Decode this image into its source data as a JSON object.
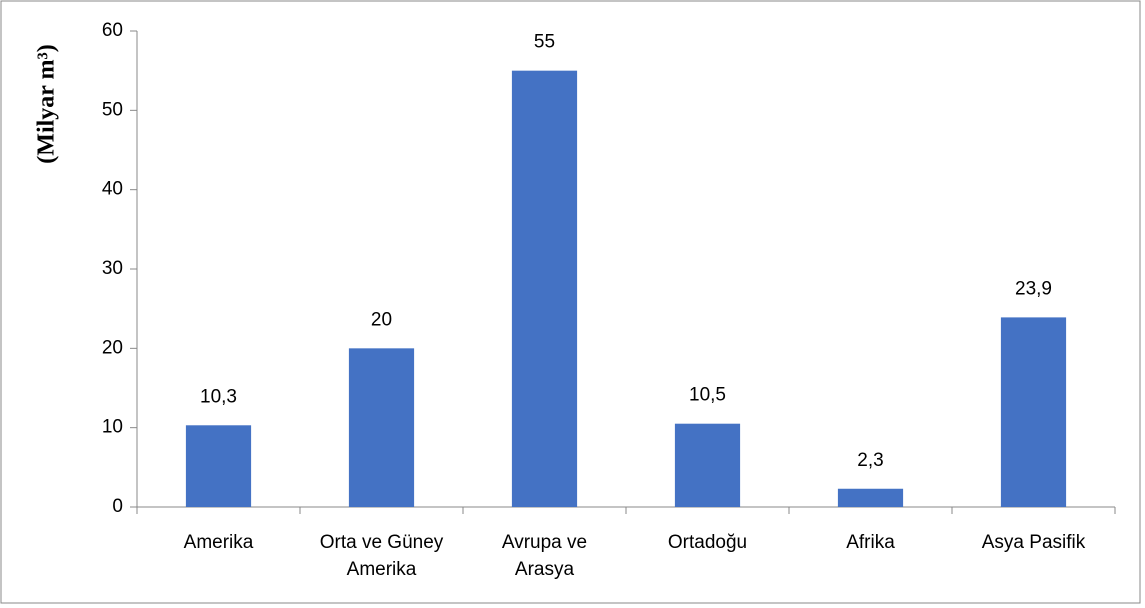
{
  "chart_data": {
    "type": "bar",
    "y_label": "(Milyar m³)",
    "categories": [
      "Amerika",
      "Orta ve Güney Amerika",
      "Avrupa ve Arasya",
      "Ortadoğu",
      "Afrika",
      "Asya Pasifik"
    ],
    "values": [
      10.3,
      20,
      55,
      10.5,
      2.3,
      23.9
    ],
    "value_labels": [
      "10,3",
      "20",
      "55",
      "10,5",
      "2,3",
      "23,9"
    ],
    "color": "#4472c4",
    "ylim": [
      0,
      60
    ],
    "yticks": [
      0,
      10,
      20,
      30,
      40,
      50,
      60
    ],
    "grid": false
  }
}
